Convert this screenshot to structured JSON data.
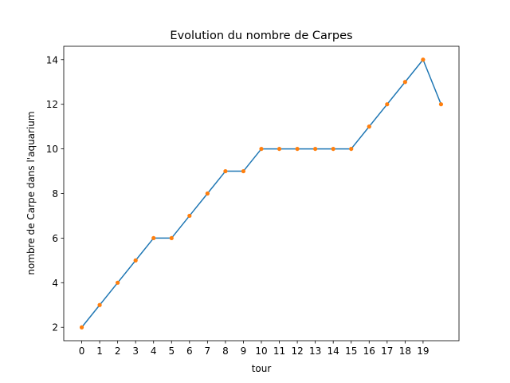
{
  "chart_data": {
    "type": "line",
    "title": "Evolution du nombre de Carpes",
    "xlabel": "tour",
    "ylabel": "nombre de Carpe dans l'aquarium",
    "x": [
      0,
      1,
      2,
      3,
      4,
      5,
      6,
      7,
      8,
      9,
      10,
      11,
      12,
      13,
      14,
      15,
      16,
      17,
      18,
      19,
      20
    ],
    "x_ticks": [
      0,
      1,
      2,
      3,
      4,
      5,
      6,
      7,
      8,
      9,
      10,
      11,
      12,
      13,
      14,
      15,
      16,
      17,
      18,
      19
    ],
    "y_ticks": [
      2,
      4,
      6,
      8,
      10,
      12,
      14
    ],
    "series": [
      {
        "values": [
          2,
          3,
          4,
          5,
          6,
          6,
          7,
          8,
          9,
          9,
          10,
          10,
          10,
          10,
          10,
          10,
          11,
          12,
          13,
          14,
          12
        ],
        "line_color": "#1f77b4",
        "marker_color": "#ff7f0e"
      }
    ],
    "xlim": [
      -1,
      21
    ],
    "ylim": [
      1.4,
      14.6
    ],
    "grid": false,
    "legend": false
  }
}
